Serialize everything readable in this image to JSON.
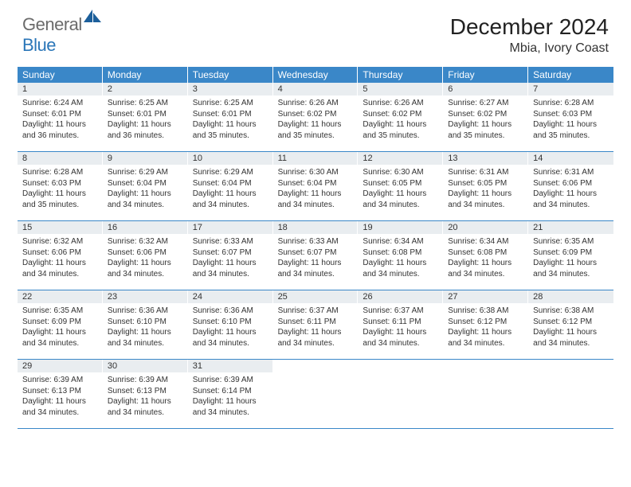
{
  "brand": {
    "part1": "General",
    "part2": "Blue",
    "color_general": "#6b6b6b",
    "color_blue": "#2a76b8",
    "icon_fill": "#1c5f9b"
  },
  "header": {
    "month_title": "December 2024",
    "location": "Mbia, Ivory Coast"
  },
  "colors": {
    "weekday_bg": "#3a87c8",
    "weekday_fg": "#ffffff",
    "daynum_bg": "#e9edf0",
    "row_border": "#3a87c8",
    "text": "#333333"
  },
  "typography": {
    "month_title_fontsize": 28,
    "location_fontsize": 16,
    "weekday_fontsize": 12,
    "daynum_fontsize": 11,
    "body_fontsize": 10
  },
  "calendar": {
    "weekdays": [
      "Sunday",
      "Monday",
      "Tuesday",
      "Wednesday",
      "Thursday",
      "Friday",
      "Saturday"
    ],
    "weeks": [
      [
        {
          "day": "1",
          "sunrise": "Sunrise: 6:24 AM",
          "sunset": "Sunset: 6:01 PM",
          "daylight": "Daylight: 11 hours and 36 minutes."
        },
        {
          "day": "2",
          "sunrise": "Sunrise: 6:25 AM",
          "sunset": "Sunset: 6:01 PM",
          "daylight": "Daylight: 11 hours and 36 minutes."
        },
        {
          "day": "3",
          "sunrise": "Sunrise: 6:25 AM",
          "sunset": "Sunset: 6:01 PM",
          "daylight": "Daylight: 11 hours and 35 minutes."
        },
        {
          "day": "4",
          "sunrise": "Sunrise: 6:26 AM",
          "sunset": "Sunset: 6:02 PM",
          "daylight": "Daylight: 11 hours and 35 minutes."
        },
        {
          "day": "5",
          "sunrise": "Sunrise: 6:26 AM",
          "sunset": "Sunset: 6:02 PM",
          "daylight": "Daylight: 11 hours and 35 minutes."
        },
        {
          "day": "6",
          "sunrise": "Sunrise: 6:27 AM",
          "sunset": "Sunset: 6:02 PM",
          "daylight": "Daylight: 11 hours and 35 minutes."
        },
        {
          "day": "7",
          "sunrise": "Sunrise: 6:28 AM",
          "sunset": "Sunset: 6:03 PM",
          "daylight": "Daylight: 11 hours and 35 minutes."
        }
      ],
      [
        {
          "day": "8",
          "sunrise": "Sunrise: 6:28 AM",
          "sunset": "Sunset: 6:03 PM",
          "daylight": "Daylight: 11 hours and 35 minutes."
        },
        {
          "day": "9",
          "sunrise": "Sunrise: 6:29 AM",
          "sunset": "Sunset: 6:04 PM",
          "daylight": "Daylight: 11 hours and 34 minutes."
        },
        {
          "day": "10",
          "sunrise": "Sunrise: 6:29 AM",
          "sunset": "Sunset: 6:04 PM",
          "daylight": "Daylight: 11 hours and 34 minutes."
        },
        {
          "day": "11",
          "sunrise": "Sunrise: 6:30 AM",
          "sunset": "Sunset: 6:04 PM",
          "daylight": "Daylight: 11 hours and 34 minutes."
        },
        {
          "day": "12",
          "sunrise": "Sunrise: 6:30 AM",
          "sunset": "Sunset: 6:05 PM",
          "daylight": "Daylight: 11 hours and 34 minutes."
        },
        {
          "day": "13",
          "sunrise": "Sunrise: 6:31 AM",
          "sunset": "Sunset: 6:05 PM",
          "daylight": "Daylight: 11 hours and 34 minutes."
        },
        {
          "day": "14",
          "sunrise": "Sunrise: 6:31 AM",
          "sunset": "Sunset: 6:06 PM",
          "daylight": "Daylight: 11 hours and 34 minutes."
        }
      ],
      [
        {
          "day": "15",
          "sunrise": "Sunrise: 6:32 AM",
          "sunset": "Sunset: 6:06 PM",
          "daylight": "Daylight: 11 hours and 34 minutes."
        },
        {
          "day": "16",
          "sunrise": "Sunrise: 6:32 AM",
          "sunset": "Sunset: 6:06 PM",
          "daylight": "Daylight: 11 hours and 34 minutes."
        },
        {
          "day": "17",
          "sunrise": "Sunrise: 6:33 AM",
          "sunset": "Sunset: 6:07 PM",
          "daylight": "Daylight: 11 hours and 34 minutes."
        },
        {
          "day": "18",
          "sunrise": "Sunrise: 6:33 AM",
          "sunset": "Sunset: 6:07 PM",
          "daylight": "Daylight: 11 hours and 34 minutes."
        },
        {
          "day": "19",
          "sunrise": "Sunrise: 6:34 AM",
          "sunset": "Sunset: 6:08 PM",
          "daylight": "Daylight: 11 hours and 34 minutes."
        },
        {
          "day": "20",
          "sunrise": "Sunrise: 6:34 AM",
          "sunset": "Sunset: 6:08 PM",
          "daylight": "Daylight: 11 hours and 34 minutes."
        },
        {
          "day": "21",
          "sunrise": "Sunrise: 6:35 AM",
          "sunset": "Sunset: 6:09 PM",
          "daylight": "Daylight: 11 hours and 34 minutes."
        }
      ],
      [
        {
          "day": "22",
          "sunrise": "Sunrise: 6:35 AM",
          "sunset": "Sunset: 6:09 PM",
          "daylight": "Daylight: 11 hours and 34 minutes."
        },
        {
          "day": "23",
          "sunrise": "Sunrise: 6:36 AM",
          "sunset": "Sunset: 6:10 PM",
          "daylight": "Daylight: 11 hours and 34 minutes."
        },
        {
          "day": "24",
          "sunrise": "Sunrise: 6:36 AM",
          "sunset": "Sunset: 6:10 PM",
          "daylight": "Daylight: 11 hours and 34 minutes."
        },
        {
          "day": "25",
          "sunrise": "Sunrise: 6:37 AM",
          "sunset": "Sunset: 6:11 PM",
          "daylight": "Daylight: 11 hours and 34 minutes."
        },
        {
          "day": "26",
          "sunrise": "Sunrise: 6:37 AM",
          "sunset": "Sunset: 6:11 PM",
          "daylight": "Daylight: 11 hours and 34 minutes."
        },
        {
          "day": "27",
          "sunrise": "Sunrise: 6:38 AM",
          "sunset": "Sunset: 6:12 PM",
          "daylight": "Daylight: 11 hours and 34 minutes."
        },
        {
          "day": "28",
          "sunrise": "Sunrise: 6:38 AM",
          "sunset": "Sunset: 6:12 PM",
          "daylight": "Daylight: 11 hours and 34 minutes."
        }
      ],
      [
        {
          "day": "29",
          "sunrise": "Sunrise: 6:39 AM",
          "sunset": "Sunset: 6:13 PM",
          "daylight": "Daylight: 11 hours and 34 minutes."
        },
        {
          "day": "30",
          "sunrise": "Sunrise: 6:39 AM",
          "sunset": "Sunset: 6:13 PM",
          "daylight": "Daylight: 11 hours and 34 minutes."
        },
        {
          "day": "31",
          "sunrise": "Sunrise: 6:39 AM",
          "sunset": "Sunset: 6:14 PM",
          "daylight": "Daylight: 11 hours and 34 minutes."
        },
        null,
        null,
        null,
        null
      ]
    ]
  }
}
